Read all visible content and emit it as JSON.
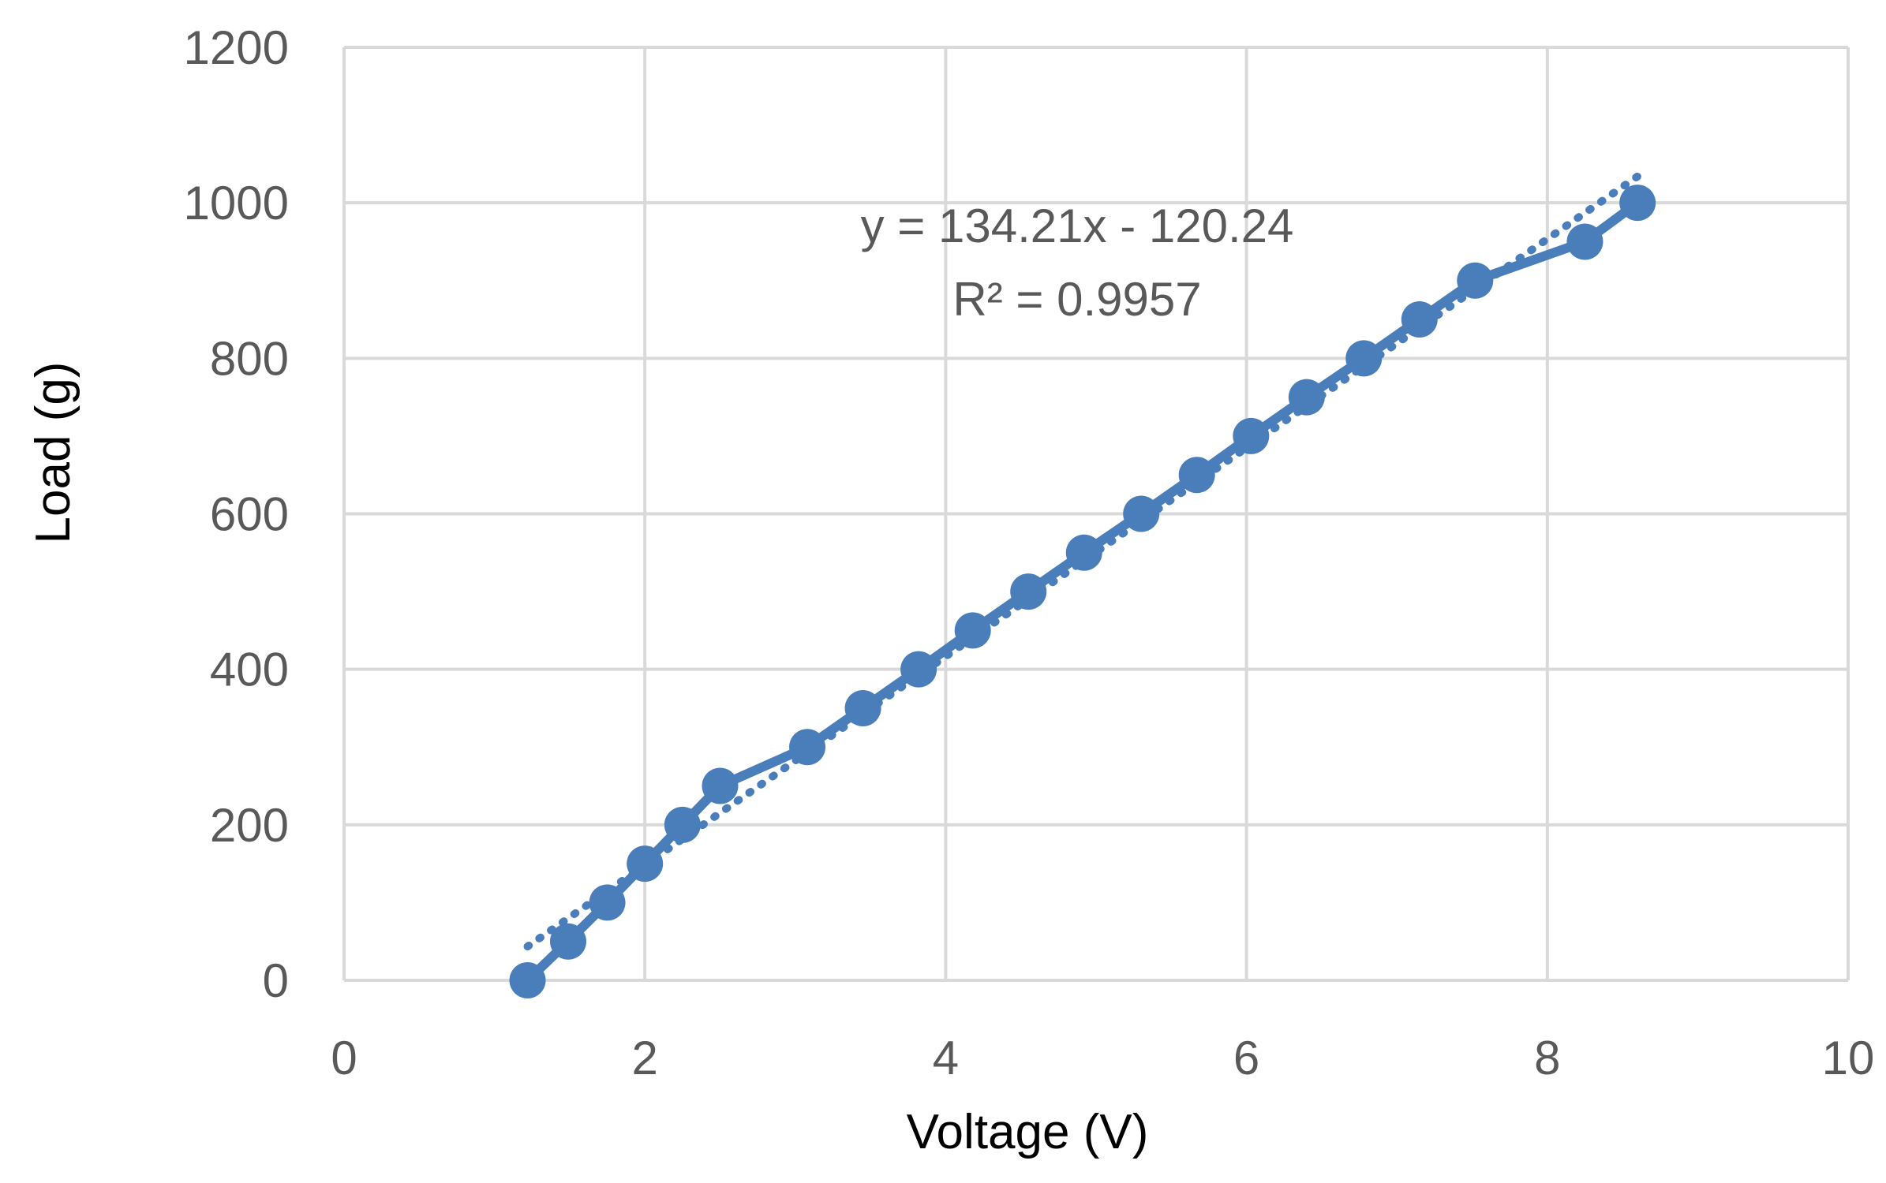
{
  "chart_data": {
    "type": "scatter",
    "xlabel": "Voltage (V)",
    "ylabel": "Load (g)",
    "xlim": [
      0,
      10
    ],
    "ylim": [
      0,
      1200
    ],
    "xticks": [
      "0",
      "2",
      "4",
      "6",
      "8",
      "10"
    ],
    "yticks": [
      "0",
      "200",
      "400",
      "600",
      "800",
      "1000",
      "1200"
    ],
    "grid": true,
    "color": "#4a7ebb",
    "series": [
      {
        "x": [
          1.22,
          1.49,
          1.75,
          2.0,
          2.25,
          2.5,
          3.08,
          3.45,
          3.82,
          4.18,
          4.55,
          4.92,
          5.3,
          5.67,
          6.03,
          6.4,
          6.78,
          7.15,
          7.52,
          8.25,
          8.6
        ],
        "values": [
          0,
          50,
          100,
          150,
          200,
          250,
          300,
          350,
          400,
          450,
          500,
          550,
          600,
          650,
          700,
          750,
          800,
          850,
          900,
          950,
          1000
        ]
      }
    ],
    "trendline": {
      "style": "dotted",
      "slope": 134.21,
      "intercept": -120.24,
      "x_range": [
        1.22,
        8.6
      ],
      "equation": "y = 134.21x - 120.24",
      "r2": "R² = 0.9957"
    }
  }
}
